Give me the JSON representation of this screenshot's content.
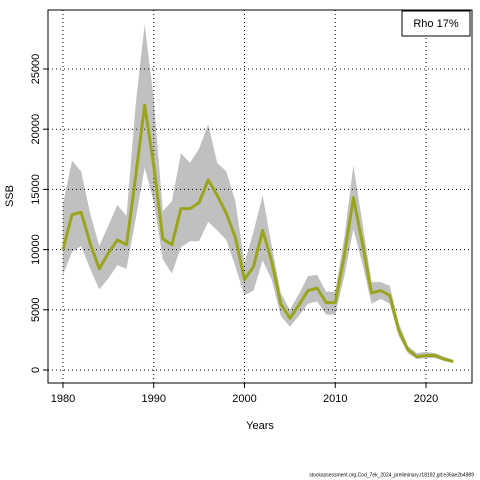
{
  "chart_data": {
    "type": "line",
    "x": [
      1980,
      1981,
      1982,
      1983,
      1984,
      1985,
      1986,
      1987,
      1988,
      1989,
      1990,
      1991,
      1992,
      1993,
      1994,
      1995,
      1996,
      1997,
      1998,
      1999,
      2000,
      2001,
      2002,
      2003,
      2004,
      2005,
      2006,
      2007,
      2008,
      2009,
      2010,
      2011,
      2012,
      2013,
      2014,
      2015,
      2016,
      2017,
      2018,
      2019,
      2020,
      2021,
      2022,
      2023
    ],
    "series": [
      {
        "name": "SSB",
        "color": "#9aa51e",
        "values": [
          10000,
          12900,
          13100,
          10500,
          8400,
          9700,
          10800,
          10400,
          16000,
          22000,
          17000,
          10900,
          10400,
          13400,
          13400,
          13900,
          15800,
          14500,
          13000,
          11000,
          7500,
          8600,
          11600,
          9000,
          5500,
          4300,
          5400,
          6600,
          6800,
          5600,
          5600,
          9500,
          14300,
          10500,
          6400,
          6600,
          6200,
          3300,
          1700,
          1100,
          1200,
          1200,
          900,
          700
        ]
      }
    ],
    "band_upper": [
      13800,
      17400,
      16500,
      13000,
      10300,
      12000,
      13700,
      12800,
      22000,
      28700,
      22500,
      13200,
      14000,
      18000,
      17200,
      18400,
      20400,
      17200,
      16500,
      14000,
      8900,
      11500,
      14500,
      10300,
      6400,
      5000,
      6300,
      7800,
      7900,
      6500,
      6500,
      11000,
      17000,
      12200,
      7300,
      7300,
      7000,
      3900,
      2000,
      1400,
      1500,
      1400,
      1100,
      850
    ],
    "band_lower": [
      7900,
      9800,
      10300,
      8400,
      6700,
      7600,
      8700,
      8400,
      12500,
      16800,
      14000,
      9200,
      8000,
      10200,
      10700,
      10700,
      12300,
      11600,
      10800,
      8600,
      6200,
      6600,
      9100,
      7500,
      4500,
      3600,
      4500,
      5500,
      5700,
      4600,
      4600,
      7800,
      11700,
      8800,
      5500,
      5900,
      5500,
      2800,
      1400,
      900,
      1000,
      1000,
      750,
      600
    ],
    "band_color": "#c0c0c0",
    "xlim": [
      1978.35,
      2025.07
    ],
    "ylim": [
      -1080,
      29900
    ],
    "xticks": [
      1980,
      1990,
      2000,
      2010,
      2020
    ],
    "yticks": [
      0,
      5000,
      10000,
      15000,
      20000,
      25000
    ],
    "grid": true,
    "xlabel": "Years",
    "ylabel": "SSB",
    "legend_text": "Rho 17%",
    "footer": "stockassessment.org,Cod_7ek_2024_preliminary,r18192,git:e36ae2b4989"
  }
}
